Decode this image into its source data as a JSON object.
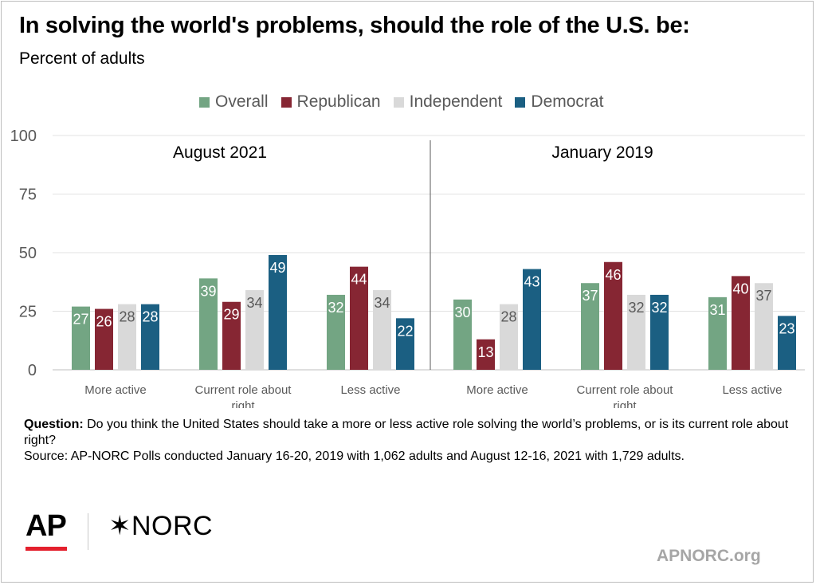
{
  "title": "In solving the world's problems, should the role of the U.S. be:",
  "subtitle": "Percent of adults",
  "colors": {
    "overall": "#73a583",
    "republican": "#862633",
    "independent": "#d9d9d9",
    "democrat": "#1b5f82",
    "axis_text": "#595959"
  },
  "chart_data": {
    "type": "bar",
    "ylim": [
      0,
      100
    ],
    "yticks": [
      0,
      25,
      50,
      75,
      100
    ],
    "grid": true,
    "legend_position": "top",
    "legend": [
      "Overall",
      "Republican",
      "Independent",
      "Democrat"
    ],
    "panels": [
      {
        "label": "August 2021",
        "categories": [
          "More active",
          "Current role about right",
          "Less active"
        ],
        "series": [
          {
            "name": "Overall",
            "values": [
              27,
              39,
              32
            ]
          },
          {
            "name": "Republican",
            "values": [
              26,
              29,
              44
            ]
          },
          {
            "name": "Independent",
            "values": [
              28,
              34,
              34
            ]
          },
          {
            "name": "Democrat",
            "values": [
              28,
              49,
              22
            ]
          }
        ]
      },
      {
        "label": "January 2019",
        "categories": [
          "More active",
          "Current role about right",
          "Less active"
        ],
        "series": [
          {
            "name": "Overall",
            "values": [
              30,
              37,
              31
            ]
          },
          {
            "name": "Republican",
            "values": [
              13,
              46,
              40
            ]
          },
          {
            "name": "Independent",
            "values": [
              28,
              32,
              37
            ]
          },
          {
            "name": "Democrat",
            "values": [
              43,
              32,
              23
            ]
          }
        ]
      }
    ]
  },
  "footnote": {
    "question_label": "Question:",
    "question_text": " Do you think the United States should take a more or less active role solving the world’s problems, or is its current role about right?",
    "source_text": "Source: AP-NORC Polls conducted January 16-20, 2019 with 1,062 adults and August 12-16, 2021 with 1,729 adults."
  },
  "logos": {
    "ap": "AP",
    "norc": "✶NORC"
  },
  "site": "APNORC.org"
}
